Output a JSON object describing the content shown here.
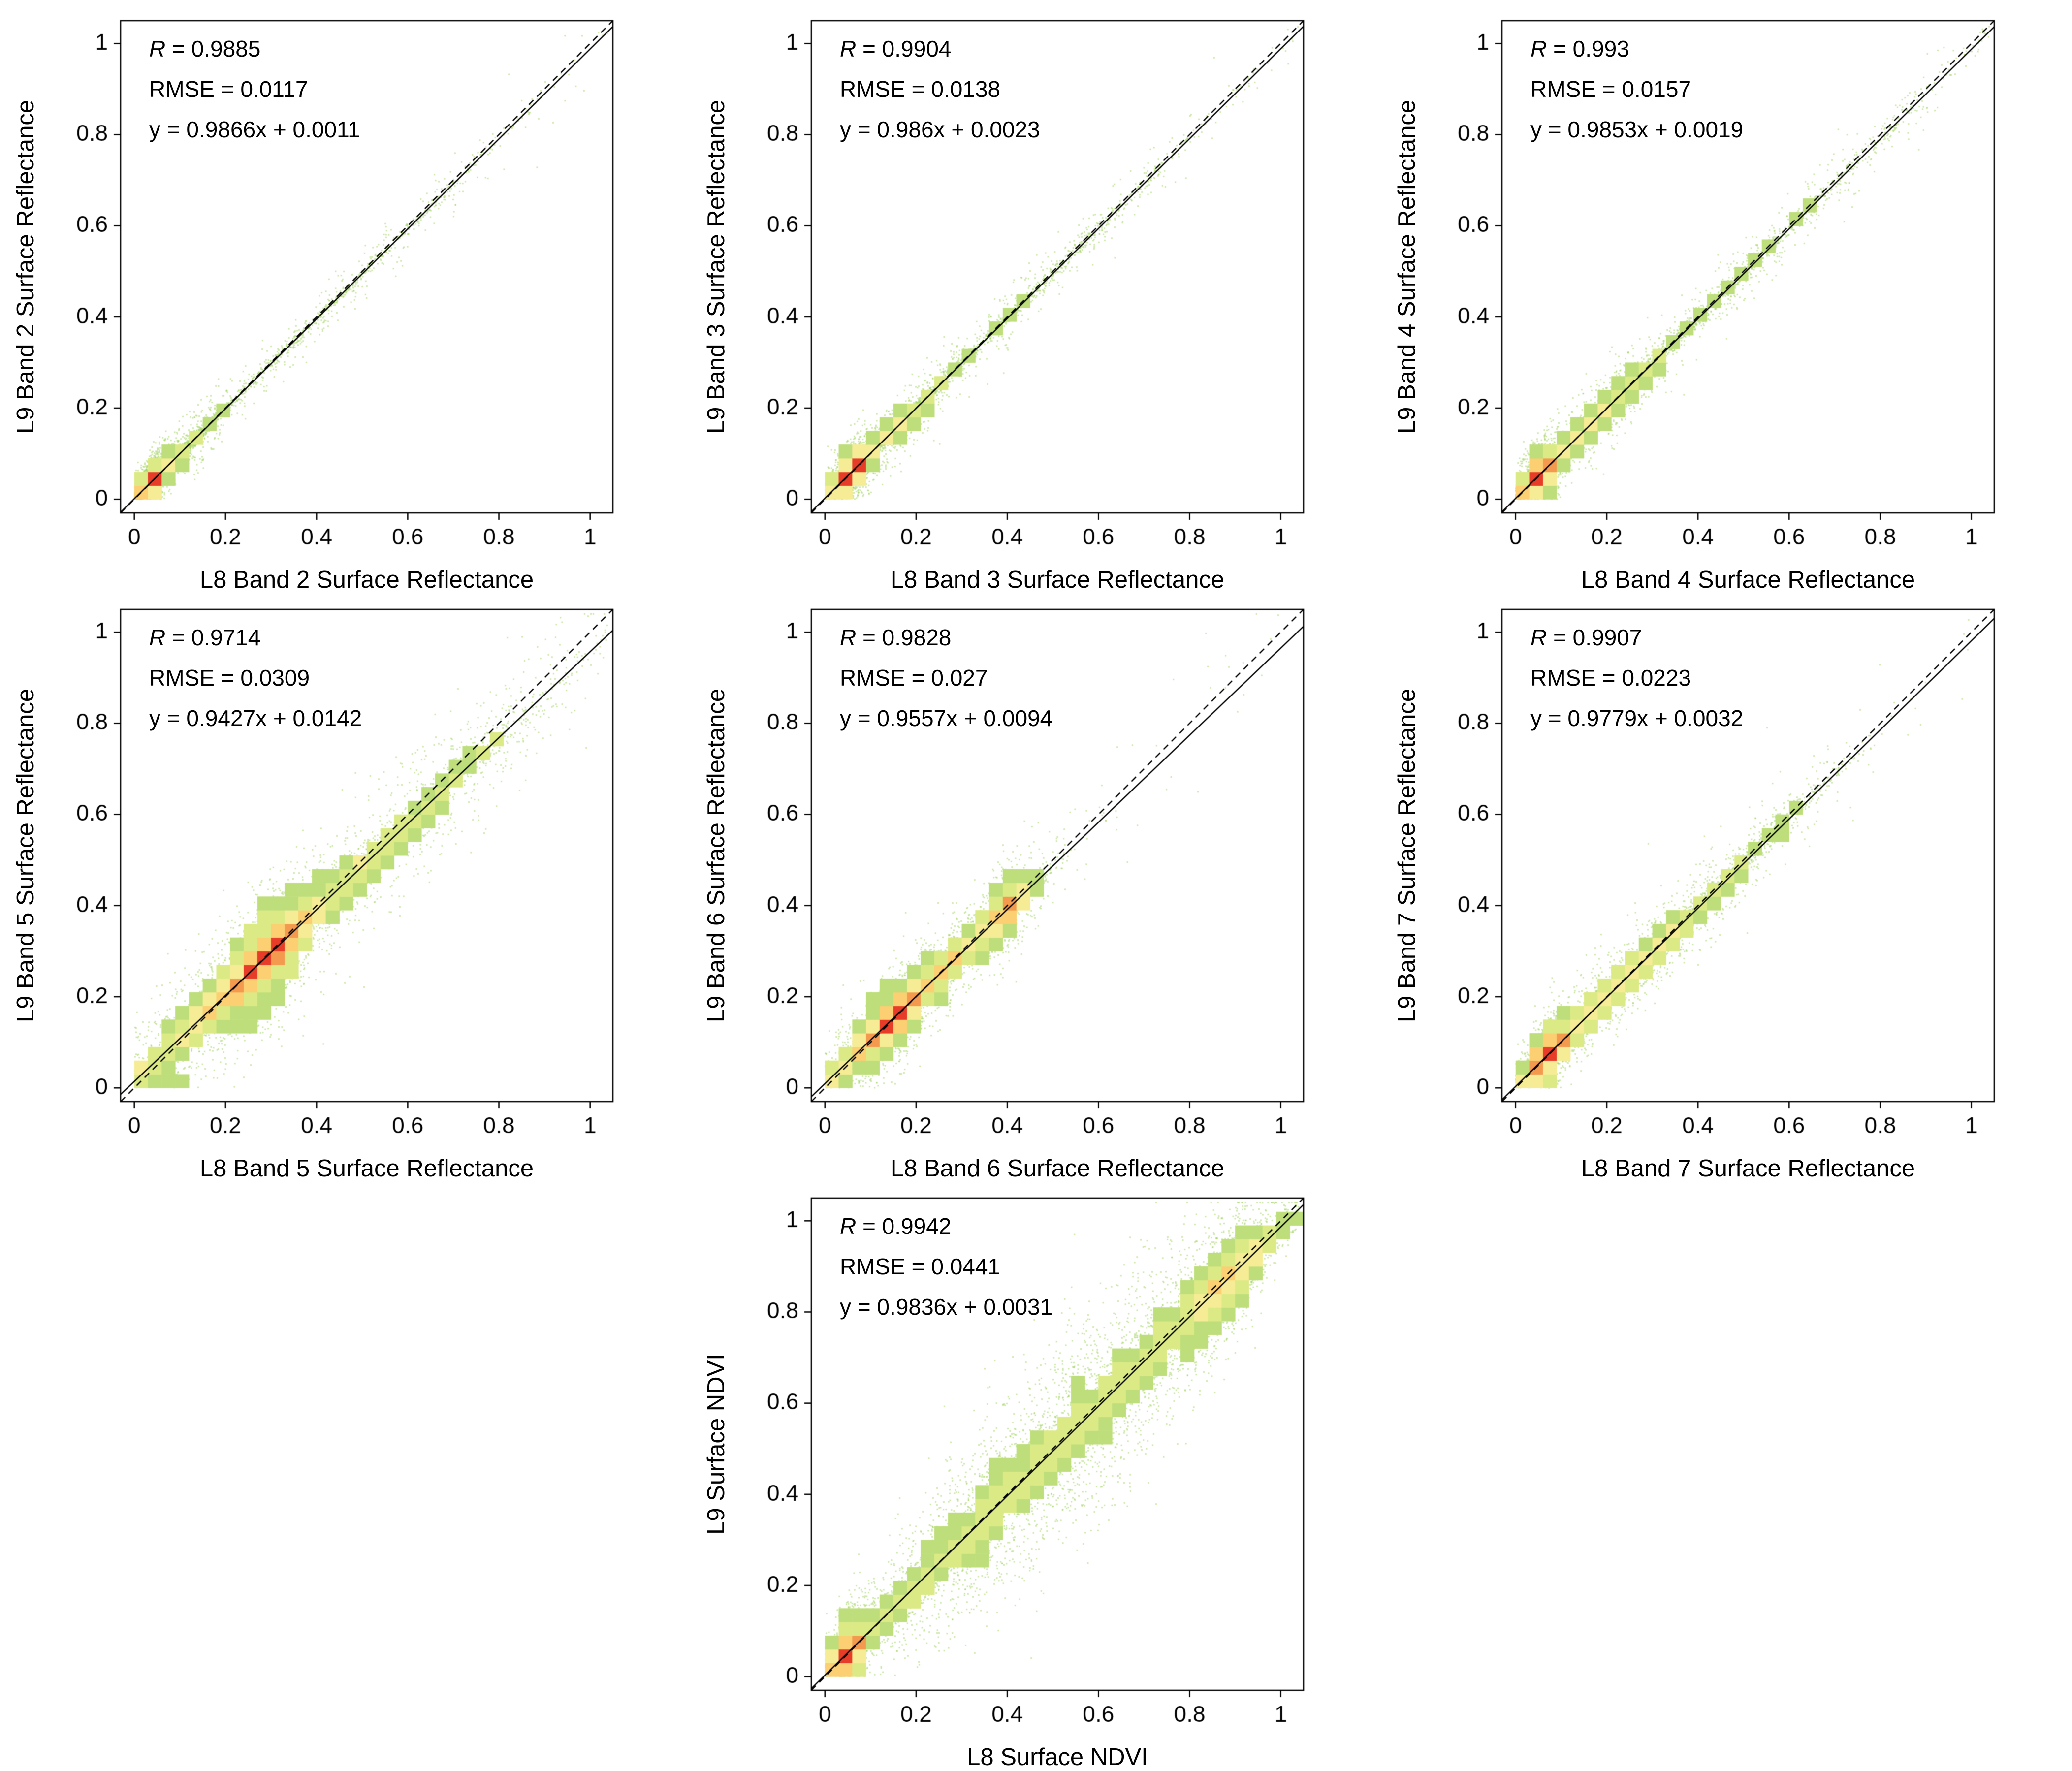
{
  "page": {
    "background": "#ffffff"
  },
  "style": {
    "point_color": "#a2d35e",
    "line_color": "#000000",
    "text_color": "#000000",
    "density_levels": [
      0.2,
      0.3,
      0.43,
      0.58,
      0.74,
      0.9
    ],
    "density_colors": [
      "#bede7b",
      "#dcea86",
      "#f6ec95",
      "#fbcf72",
      "#f49a4f",
      "#e63c28"
    ]
  },
  "chart_data": [
    {
      "type": "scatter",
      "band": "Band 2",
      "xlabel": "L8 Band 2 Surface Reflectance",
      "ylabel": "L9 Band 2 Surface Reflectance",
      "stats": {
        "r_line": "R = 0.9885",
        "rmse_line": "RMSE = 0.0117",
        "fit_line": "y = 0.9866x + 0.0011"
      },
      "fit": {
        "r": 0.9885,
        "rmse": 0.0117,
        "slope": 0.9866,
        "intercept": 0.0011
      },
      "identity_line": "dashed 1:1",
      "xlim": [
        -0.03,
        1.05
      ],
      "ylim": [
        -0.03,
        1.05
      ],
      "xticks": [
        0,
        0.2,
        0.4,
        0.6,
        0.8,
        1
      ],
      "yticks": [
        0,
        0.2,
        0.4,
        0.6,
        0.8,
        1
      ],
      "sim": {
        "seed": 11,
        "n": 5200,
        "modes": [
          [
            0.04,
            0.016,
            0.55
          ],
          [
            0.1,
            0.05,
            0.25
          ],
          [
            0.35,
            0.25,
            0.2
          ]
        ],
        "noise": [
          0.007,
          0.03
        ],
        "fan": 0.3,
        "outlier": 0.008,
        "lens": false
      }
    },
    {
      "type": "scatter",
      "band": "Band 3",
      "xlabel": "L8 Band 3 Surface Reflectance",
      "ylabel": "L9 Band 3 Surface Reflectance",
      "stats": {
        "r_line": "R = 0.9904",
        "rmse_line": "RMSE = 0.0138",
        "fit_line": "y = 0.986x + 0.0023"
      },
      "fit": {
        "r": 0.9904,
        "rmse": 0.0138,
        "slope": 0.986,
        "intercept": 0.0023
      },
      "identity_line": "dashed 1:1",
      "xlim": [
        -0.03,
        1.05
      ],
      "ylim": [
        -0.03,
        1.05
      ],
      "xticks": [
        0,
        0.2,
        0.4,
        0.6,
        0.8,
        1
      ],
      "yticks": [
        0,
        0.2,
        0.4,
        0.6,
        0.8,
        1
      ],
      "sim": {
        "seed": 22,
        "n": 5400,
        "modes": [
          [
            0.055,
            0.022,
            0.5
          ],
          [
            0.14,
            0.07,
            0.28
          ],
          [
            0.38,
            0.24,
            0.22
          ]
        ],
        "noise": [
          0.009,
          0.035
        ],
        "fan": 0.3,
        "outlier": 0.008,
        "lens": false
      }
    },
    {
      "type": "scatter",
      "band": "Band 4",
      "xlabel": "L8 Band 4 Surface Reflectance",
      "ylabel": "L9 Band 4 Surface Reflectance",
      "stats": {
        "r_line": "R = 0.993",
        "rmse_line": "RMSE = 0.0157",
        "fit_line": "y = 0.9853x + 0.0019"
      },
      "fit": {
        "r": 0.993,
        "rmse": 0.0157,
        "slope": 0.9853,
        "intercept": 0.0019
      },
      "identity_line": "dashed 1:1",
      "xlim": [
        -0.03,
        1.05
      ],
      "ylim": [
        -0.03,
        1.05
      ],
      "xticks": [
        0,
        0.2,
        0.4,
        0.6,
        0.8,
        1
      ],
      "yticks": [
        0,
        0.2,
        0.4,
        0.6,
        0.8,
        1
      ],
      "sim": {
        "seed": 33,
        "n": 5600,
        "modes": [
          [
            0.05,
            0.022,
            0.42
          ],
          [
            0.18,
            0.09,
            0.33
          ],
          [
            0.45,
            0.25,
            0.25
          ]
        ],
        "noise": [
          0.011,
          0.04
        ],
        "fan": 0.3,
        "outlier": 0.008,
        "lens": false
      }
    },
    {
      "type": "scatter",
      "band": "Band 5",
      "xlabel": "L8 Band 5 Surface Reflectance",
      "ylabel": "L9 Band 5 Surface Reflectance",
      "stats": {
        "r_line": "R = 0.9714",
        "rmse_line": "RMSE = 0.0309",
        "fit_line": "y = 0.9427x + 0.0142"
      },
      "fit": {
        "r": 0.9714,
        "rmse": 0.0309,
        "slope": 0.9427,
        "intercept": 0.0142
      },
      "identity_line": "dashed 1:1",
      "xlim": [
        -0.03,
        1.05
      ],
      "ylim": [
        -0.03,
        1.05
      ],
      "xticks": [
        0,
        0.2,
        0.4,
        0.6,
        0.8,
        1
      ],
      "yticks": [
        0,
        0.2,
        0.4,
        0.6,
        0.8,
        1
      ],
      "sim": {
        "seed": 44,
        "n": 6500,
        "modes": [
          [
            0.29,
            0.05,
            0.38
          ],
          [
            0.2,
            0.12,
            0.3
          ],
          [
            0.5,
            0.22,
            0.32
          ]
        ],
        "noise": [
          0.02,
          0.07
        ],
        "fan": 0.42,
        "outlier": 0.01,
        "lens": false
      }
    },
    {
      "type": "scatter",
      "band": "Band 6",
      "xlabel": "L8 Band 6 Surface Reflectance",
      "ylabel": "L9 Band 6 Surface Reflectance",
      "stats": {
        "r_line": "R = 0.9828",
        "rmse_line": "RMSE = 0.027",
        "fit_line": "y = 0.9557x + 0.0094"
      },
      "fit": {
        "r": 0.9828,
        "rmse": 0.027,
        "slope": 0.9557,
        "intercept": 0.0094
      },
      "identity_line": "dashed 1:1",
      "xlim": [
        -0.03,
        1.05
      ],
      "ylim": [
        -0.03,
        1.05
      ],
      "xticks": [
        0,
        0.2,
        0.4,
        0.6,
        0.8,
        1
      ],
      "yticks": [
        0,
        0.2,
        0.4,
        0.6,
        0.8,
        1
      ],
      "sim": {
        "seed": 55,
        "n": 6000,
        "modes": [
          [
            0.15,
            0.04,
            0.32
          ],
          [
            0.27,
            0.1,
            0.28
          ],
          [
            0.4,
            0.025,
            0.15
          ],
          [
            0.1,
            0.18,
            0.25
          ]
        ],
        "noise": [
          0.014,
          0.05
        ],
        "fan": 0.35,
        "outlier": 0.01,
        "lens": false
      }
    },
    {
      "type": "scatter",
      "band": "Band 7",
      "xlabel": "L8 Band 7 Surface Reflectance",
      "ylabel": "L9 Band 7 Surface Reflectance",
      "stats": {
        "r_line": "R = 0.9907",
        "rmse_line": "RMSE = 0.0223",
        "fit_line": "y = 0.9779x + 0.0032"
      },
      "fit": {
        "r": 0.9907,
        "rmse": 0.0223,
        "slope": 0.9779,
        "intercept": 0.0032
      },
      "identity_line": "dashed 1:1",
      "xlim": [
        -0.03,
        1.05
      ],
      "ylim": [
        -0.03,
        1.05
      ],
      "xticks": [
        0,
        0.2,
        0.4,
        0.6,
        0.8,
        1
      ],
      "yticks": [
        0,
        0.2,
        0.4,
        0.6,
        0.8,
        1
      ],
      "sim": {
        "seed": 66,
        "n": 5800,
        "modes": [
          [
            0.07,
            0.025,
            0.36
          ],
          [
            0.2,
            0.1,
            0.34
          ],
          [
            0.38,
            0.16,
            0.3
          ]
        ],
        "noise": [
          0.013,
          0.045
        ],
        "fan": 0.35,
        "outlier": 0.01,
        "lens": false
      }
    },
    {
      "type": "scatter",
      "band": "NDVI",
      "xlabel": "L8 Surface NDVI",
      "ylabel": "L9 Surface NDVI",
      "stats": {
        "r_line": "R = 0.9942",
        "rmse_line": "RMSE = 0.0441",
        "fit_line": "y = 0.9836x + 0.0031"
      },
      "fit": {
        "r": 0.9942,
        "rmse": 0.0441,
        "slope": 0.9836,
        "intercept": 0.0031
      },
      "identity_line": "dashed 1:1",
      "xlim": [
        -0.03,
        1.05
      ],
      "ylim": [
        -0.03,
        1.05
      ],
      "xticks": [
        0,
        0.2,
        0.4,
        0.6,
        0.8,
        1
      ],
      "yticks": [
        0,
        0.2,
        0.4,
        0.6,
        0.8,
        1
      ],
      "sim": {
        "seed": 77,
        "n": 9500,
        "modes": [
          [
            0.05,
            0.02,
            0.16
          ],
          [
            0.35,
            0.2,
            0.4
          ],
          [
            0.72,
            0.16,
            0.28
          ],
          [
            0.88,
            0.05,
            0.16
          ]
        ],
        "noise": [
          0.03,
          0.11
        ],
        "fan": 0.5,
        "outlier": 0.008,
        "lens": true
      }
    }
  ]
}
